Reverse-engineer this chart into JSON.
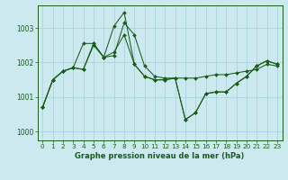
{
  "title": "Graphe pression niveau de la mer (hPa)",
  "x_labels": [
    "0",
    "1",
    "2",
    "3",
    "4",
    "5",
    "6",
    "7",
    "8",
    "9",
    "10",
    "11",
    "12",
    "13",
    "14",
    "15",
    "16",
    "17",
    "18",
    "19",
    "20",
    "21",
    "22",
    "23"
  ],
  "xlim": [
    -0.5,
    23.5
  ],
  "ylim": [
    999.75,
    1003.65
  ],
  "yticks": [
    1000,
    1001,
    1002,
    1003
  ],
  "background_color": "#cce9f0",
  "grid_color": "#aad4dc",
  "line_color": "#1a5c1a",
  "s1": [
    1000.7,
    1001.5,
    1001.75,
    1001.85,
    1001.8,
    1002.5,
    1002.15,
    1002.2,
    1003.15,
    1002.8,
    1001.9,
    1001.6,
    1001.55,
    1001.55,
    1001.55,
    1001.55,
    1001.6,
    1001.65,
    1001.65,
    1001.7,
    1001.75,
    1001.8,
    1001.95,
    1001.9
  ],
  "s2": [
    1000.7,
    1001.5,
    1001.75,
    1001.85,
    1001.8,
    1002.55,
    1002.15,
    1003.05,
    1003.45,
    1001.95,
    1001.6,
    1001.5,
    1001.5,
    1001.55,
    1000.35,
    1000.55,
    1001.1,
    1001.15,
    1001.15,
    1001.4,
    1001.6,
    1001.9,
    1002.05,
    1001.95
  ],
  "s3": [
    1000.7,
    1001.5,
    1001.75,
    1001.85,
    1002.55,
    1002.55,
    1002.15,
    1002.3,
    1002.8,
    1001.95,
    1001.6,
    1001.5,
    1001.5,
    1001.55,
    1000.35,
    1000.55,
    1001.1,
    1001.15,
    1001.15,
    1001.4,
    1001.6,
    1001.9,
    1002.05,
    1001.95
  ]
}
